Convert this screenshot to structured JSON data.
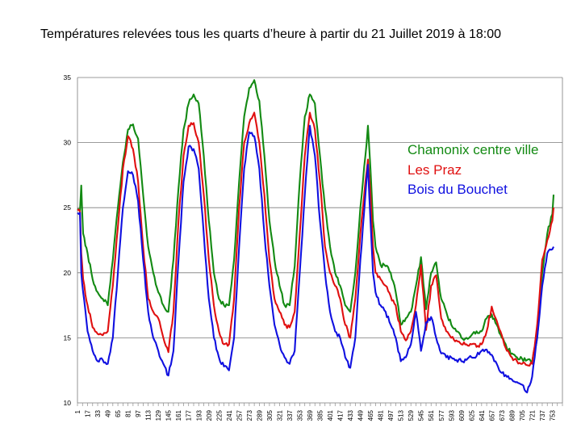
{
  "slide": {
    "title": "Températures relevées tous les quarts d’heure à partir du 21 Juillet 2019 à 18:00"
  },
  "chart_data": {
    "type": "line",
    "title": "Températures relevées tous les quarts d’heure à partir du 21 Juillet 2019 à 18:00",
    "xlabel": "",
    "ylabel": "",
    "xlim": [
      1,
      769
    ],
    "ylim": [
      10,
      35
    ],
    "yticks": [
      10,
      15,
      20,
      25,
      30,
      35
    ],
    "xticks": [
      1,
      17,
      33,
      49,
      65,
      81,
      97,
      113,
      129,
      145,
      161,
      177,
      193,
      209,
      225,
      241,
      257,
      273,
      289,
      305,
      321,
      337,
      353,
      369,
      385,
      401,
      417,
      433,
      449,
      465,
      481,
      497,
      513,
      529,
      545,
      561,
      577,
      593,
      609,
      625,
      641,
      657,
      673,
      689,
      705,
      721,
      737,
      753
    ],
    "grid": true,
    "legend_placement": "right",
    "series": [
      {
        "name": "Chamonix centre ville",
        "color": "#138a13",
        "points": [
          [
            1,
            24.9
          ],
          [
            5,
            24.8
          ],
          [
            7,
            26.7
          ],
          [
            10,
            23
          ],
          [
            17,
            21.5
          ],
          [
            25,
            19.5
          ],
          [
            33,
            18.5
          ],
          [
            41,
            18
          ],
          [
            49,
            17.5
          ],
          [
            57,
            21
          ],
          [
            65,
            25
          ],
          [
            73,
            28.5
          ],
          [
            81,
            31
          ],
          [
            89,
            31.4
          ],
          [
            97,
            30.3
          ],
          [
            105,
            26
          ],
          [
            113,
            22
          ],
          [
            121,
            20
          ],
          [
            129,
            18.5
          ],
          [
            137,
            17.5
          ],
          [
            145,
            17
          ],
          [
            153,
            21
          ],
          [
            161,
            26.5
          ],
          [
            169,
            31
          ],
          [
            177,
            33
          ],
          [
            185,
            33.7
          ],
          [
            193,
            33
          ],
          [
            201,
            29
          ],
          [
            209,
            24
          ],
          [
            217,
            20
          ],
          [
            225,
            18
          ],
          [
            233,
            17.5
          ],
          [
            241,
            17.5
          ],
          [
            249,
            21
          ],
          [
            257,
            27
          ],
          [
            265,
            32
          ],
          [
            273,
            34.2
          ],
          [
            281,
            34.8
          ],
          [
            289,
            33.2
          ],
          [
            297,
            29
          ],
          [
            305,
            24
          ],
          [
            313,
            21
          ],
          [
            321,
            19
          ],
          [
            329,
            17.5
          ],
          [
            337,
            17.5
          ],
          [
            345,
            20.5
          ],
          [
            353,
            27
          ],
          [
            361,
            32
          ],
          [
            369,
            33.7
          ],
          [
            377,
            33
          ],
          [
            385,
            29
          ],
          [
            393,
            25
          ],
          [
            401,
            22
          ],
          [
            409,
            20
          ],
          [
            417,
            19
          ],
          [
            425,
            17.5
          ],
          [
            433,
            17
          ],
          [
            441,
            20
          ],
          [
            449,
            25
          ],
          [
            457,
            29
          ],
          [
            461,
            31.3
          ],
          [
            465,
            28
          ],
          [
            469,
            24
          ],
          [
            473,
            22
          ],
          [
            481,
            20.6
          ],
          [
            489,
            20.5
          ],
          [
            497,
            20
          ],
          [
            505,
            18.5
          ],
          [
            513,
            16
          ],
          [
            521,
            16.5
          ],
          [
            529,
            17
          ],
          [
            537,
            19
          ],
          [
            545,
            21.2
          ],
          [
            553,
            17.2
          ],
          [
            561,
            20
          ],
          [
            569,
            20.8
          ],
          [
            577,
            18
          ],
          [
            585,
            17
          ],
          [
            593,
            16
          ],
          [
            601,
            15.5
          ],
          [
            609,
            15
          ],
          [
            617,
            15
          ],
          [
            625,
            15.2
          ],
          [
            633,
            15.5
          ],
          [
            641,
            15.5
          ],
          [
            649,
            16.5
          ],
          [
            657,
            16.8
          ],
          [
            665,
            16
          ],
          [
            673,
            15
          ],
          [
            681,
            14.2
          ],
          [
            689,
            13.8
          ],
          [
            697,
            13.5
          ],
          [
            705,
            13.4
          ],
          [
            713,
            13.3
          ],
          [
            721,
            13.2
          ],
          [
            729,
            15
          ],
          [
            737,
            20
          ],
          [
            745,
            23
          ],
          [
            753,
            24.5
          ],
          [
            755,
            26
          ]
        ]
      },
      {
        "name": "Les Praz",
        "color": "#e01010",
        "points": [
          [
            1,
            24.8
          ],
          [
            5,
            24.7
          ],
          [
            7,
            21.5
          ],
          [
            10,
            19.5
          ],
          [
            17,
            17.5
          ],
          [
            25,
            15.8
          ],
          [
            33,
            15.3
          ],
          [
            41,
            15.2
          ],
          [
            49,
            15.5
          ],
          [
            57,
            19
          ],
          [
            65,
            23.5
          ],
          [
            73,
            28
          ],
          [
            81,
            30.5
          ],
          [
            89,
            29.5
          ],
          [
            97,
            27
          ],
          [
            105,
            22
          ],
          [
            113,
            18
          ],
          [
            121,
            17
          ],
          [
            129,
            16.5
          ],
          [
            137,
            15
          ],
          [
            145,
            13.9
          ],
          [
            153,
            17
          ],
          [
            161,
            24
          ],
          [
            169,
            29
          ],
          [
            177,
            31.3
          ],
          [
            185,
            31.5
          ],
          [
            193,
            30
          ],
          [
            201,
            26
          ],
          [
            209,
            21
          ],
          [
            217,
            17.5
          ],
          [
            225,
            15.5
          ],
          [
            233,
            14.5
          ],
          [
            241,
            14.5
          ],
          [
            249,
            18
          ],
          [
            257,
            25
          ],
          [
            265,
            30
          ],
          [
            273,
            31.5
          ],
          [
            281,
            32.3
          ],
          [
            289,
            30
          ],
          [
            297,
            26
          ],
          [
            305,
            21
          ],
          [
            313,
            18
          ],
          [
            321,
            17
          ],
          [
            329,
            16
          ],
          [
            337,
            15.8
          ],
          [
            345,
            17
          ],
          [
            353,
            23
          ],
          [
            361,
            29
          ],
          [
            369,
            32.3
          ],
          [
            377,
            31
          ],
          [
            385,
            27
          ],
          [
            393,
            22
          ],
          [
            401,
            20
          ],
          [
            409,
            19
          ],
          [
            417,
            18
          ],
          [
            425,
            16
          ],
          [
            433,
            15
          ],
          [
            441,
            18
          ],
          [
            449,
            23
          ],
          [
            457,
            27
          ],
          [
            461,
            28.7
          ],
          [
            465,
            26
          ],
          [
            469,
            22
          ],
          [
            473,
            20
          ],
          [
            481,
            19.5
          ],
          [
            489,
            19
          ],
          [
            497,
            18.2
          ],
          [
            505,
            17.5
          ],
          [
            513,
            15.5
          ],
          [
            521,
            14.8
          ],
          [
            529,
            15.5
          ],
          [
            537,
            17.5
          ],
          [
            545,
            20.6
          ],
          [
            553,
            15.6
          ],
          [
            561,
            19
          ],
          [
            569,
            19.8
          ],
          [
            577,
            16.5
          ],
          [
            585,
            15.5
          ],
          [
            593,
            15
          ],
          [
            601,
            14.8
          ],
          [
            609,
            14.5
          ],
          [
            617,
            14.5
          ],
          [
            625,
            14.5
          ],
          [
            633,
            14.3
          ],
          [
            641,
            14.5
          ],
          [
            649,
            15.5
          ],
          [
            657,
            17.4
          ],
          [
            665,
            16.3
          ],
          [
            673,
            15.2
          ],
          [
            681,
            14
          ],
          [
            689,
            13.5
          ],
          [
            697,
            13.2
          ],
          [
            705,
            13
          ],
          [
            713,
            12.9
          ],
          [
            721,
            13
          ],
          [
            729,
            16
          ],
          [
            737,
            21
          ],
          [
            745,
            22.5
          ],
          [
            753,
            24
          ],
          [
            755,
            25
          ]
        ]
      },
      {
        "name": "Bois du Bouchet",
        "color": "#1010e0",
        "points": [
          [
            1,
            24.6
          ],
          [
            5,
            24.6
          ],
          [
            7,
            20
          ],
          [
            10,
            18.5
          ],
          [
            17,
            15.5
          ],
          [
            25,
            14
          ],
          [
            33,
            13.2
          ],
          [
            41,
            13.3
          ],
          [
            49,
            13
          ],
          [
            57,
            15
          ],
          [
            65,
            20
          ],
          [
            73,
            25
          ],
          [
            81,
            27.8
          ],
          [
            89,
            27.5
          ],
          [
            97,
            25.5
          ],
          [
            105,
            21
          ],
          [
            113,
            17
          ],
          [
            121,
            15
          ],
          [
            129,
            14
          ],
          [
            137,
            13
          ],
          [
            145,
            12.1
          ],
          [
            153,
            14
          ],
          [
            161,
            21
          ],
          [
            169,
            27
          ],
          [
            177,
            29.7
          ],
          [
            185,
            29.5
          ],
          [
            193,
            28
          ],
          [
            201,
            23
          ],
          [
            209,
            18
          ],
          [
            217,
            15
          ],
          [
            225,
            13.5
          ],
          [
            233,
            12.8
          ],
          [
            241,
            12.5
          ],
          [
            249,
            15
          ],
          [
            257,
            22
          ],
          [
            265,
            28
          ],
          [
            273,
            30.8
          ],
          [
            281,
            30.5
          ],
          [
            289,
            28
          ],
          [
            297,
            23
          ],
          [
            305,
            19
          ],
          [
            313,
            16
          ],
          [
            321,
            14.5
          ],
          [
            329,
            13.5
          ],
          [
            337,
            13
          ],
          [
            345,
            14
          ],
          [
            353,
            20
          ],
          [
            361,
            26
          ],
          [
            369,
            31.3
          ],
          [
            377,
            29
          ],
          [
            385,
            24
          ],
          [
            393,
            20
          ],
          [
            401,
            17
          ],
          [
            409,
            15.5
          ],
          [
            417,
            15
          ],
          [
            425,
            13.5
          ],
          [
            433,
            12.7
          ],
          [
            441,
            15
          ],
          [
            449,
            21
          ],
          [
            457,
            26
          ],
          [
            461,
            28.3
          ],
          [
            465,
            24
          ],
          [
            469,
            20
          ],
          [
            473,
            18.5
          ],
          [
            481,
            17.5
          ],
          [
            489,
            17
          ],
          [
            497,
            16
          ],
          [
            505,
            15
          ],
          [
            513,
            13.2
          ],
          [
            521,
            13.5
          ],
          [
            529,
            14.5
          ],
          [
            537,
            17
          ],
          [
            545,
            14
          ],
          [
            553,
            16.2
          ],
          [
            561,
            16.6
          ],
          [
            569,
            15
          ],
          [
            577,
            13.8
          ],
          [
            585,
            13.5
          ],
          [
            593,
            13.5
          ],
          [
            601,
            13.3
          ],
          [
            609,
            13.2
          ],
          [
            617,
            13.3
          ],
          [
            625,
            13.5
          ],
          [
            633,
            13.6
          ],
          [
            641,
            14
          ],
          [
            649,
            14.1
          ],
          [
            657,
            13.7
          ],
          [
            665,
            13
          ],
          [
            673,
            12.3
          ],
          [
            681,
            12
          ],
          [
            689,
            11.8
          ],
          [
            697,
            11.6
          ],
          [
            705,
            11.4
          ],
          [
            713,
            10.8
          ],
          [
            721,
            12
          ],
          [
            729,
            15
          ],
          [
            737,
            19
          ],
          [
            745,
            21.5
          ],
          [
            753,
            21.8
          ],
          [
            755,
            22
          ]
        ]
      }
    ]
  }
}
